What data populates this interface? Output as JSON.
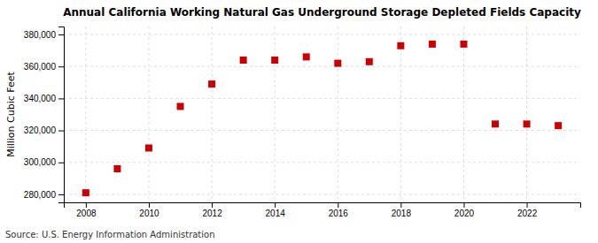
{
  "chart_data": {
    "type": "scatter",
    "title": "Annual California Working Natural Gas Underground Storage Depleted Fields Capacity",
    "ylabel": "Million Cubic Feet",
    "source": "Source: U.S. Energy Information Administration",
    "x": [
      2008,
      2009,
      2010,
      2011,
      2012,
      2013,
      2014,
      2015,
      2016,
      2017,
      2018,
      2019,
      2020,
      2021,
      2022,
      2023
    ],
    "values": [
      281000,
      296000,
      309000,
      335000,
      349000,
      364000,
      364000,
      366000,
      362000,
      363000,
      373000,
      374000,
      374000,
      324000,
      324000,
      323000
    ],
    "color": "#cc0000",
    "marker": "square",
    "xlim": [
      2007.3,
      2023.7
    ],
    "xticks": [
      2008,
      2010,
      2012,
      2014,
      2016,
      2018,
      2020,
      2022
    ],
    "ylim": [
      275000,
      385000
    ],
    "yticks": [
      {
        "value": 280000,
        "label": "280,000"
      },
      {
        "value": 300000,
        "label": "300,000"
      },
      {
        "value": 320000,
        "label": "320,000"
      },
      {
        "value": 340000,
        "label": "340,000"
      },
      {
        "value": 360000,
        "label": "360,000"
      },
      {
        "value": 380000,
        "label": "380,000"
      }
    ],
    "grid": true
  }
}
